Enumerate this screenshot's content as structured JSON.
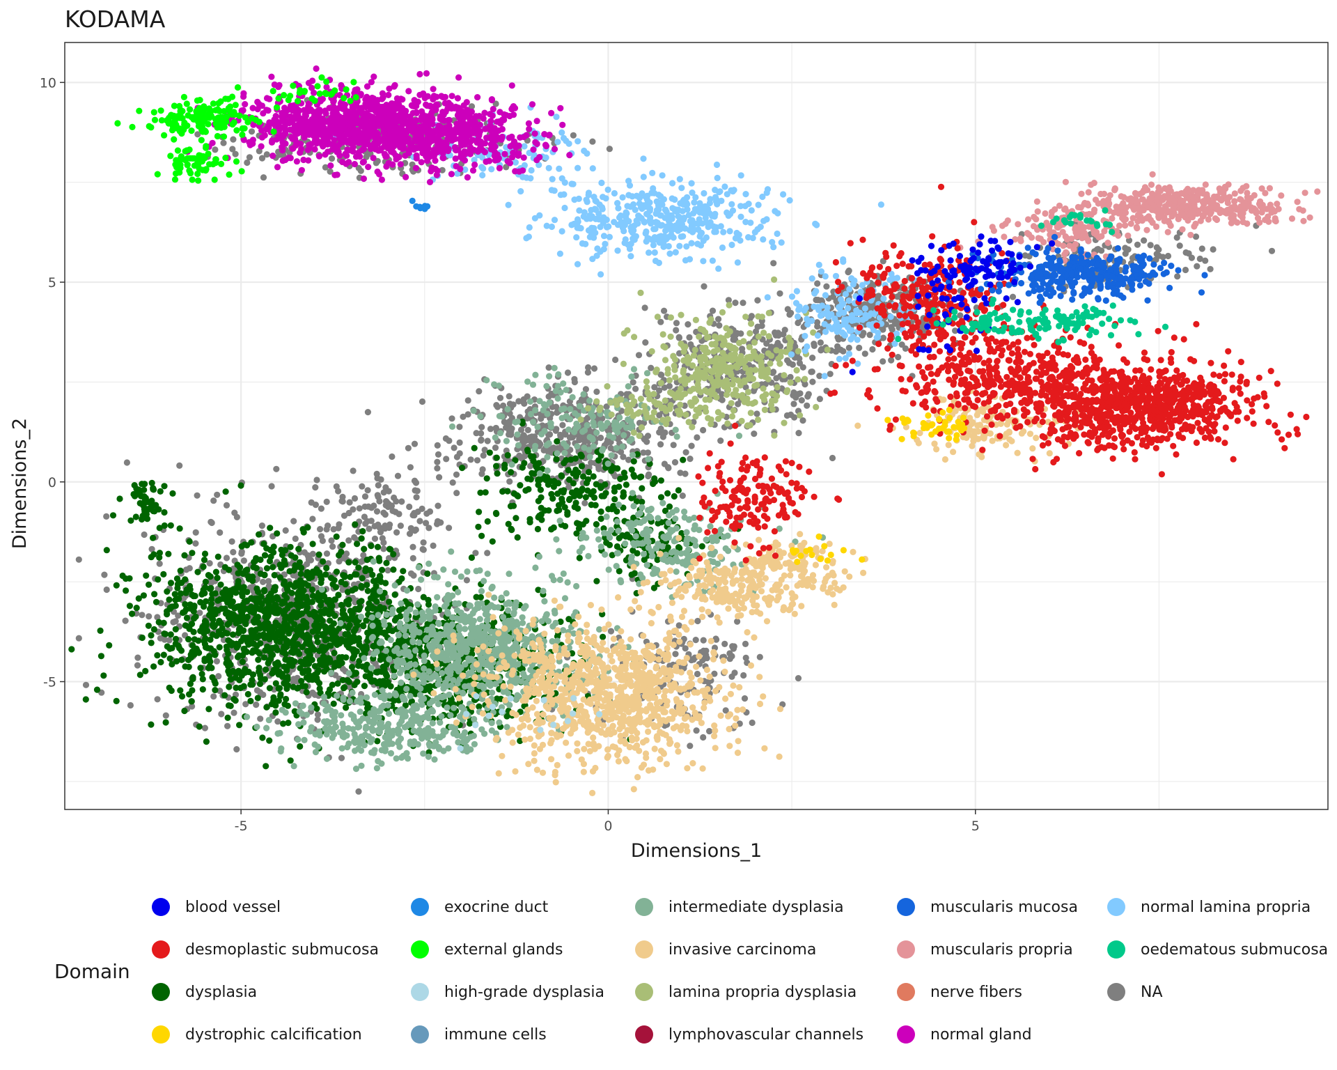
{
  "chart_data": {
    "type": "scatter",
    "title": "KODAMA",
    "xlabel": "Dimensions_1",
    "ylabel": "Dimensions_2",
    "xlim": [
      -7.4,
      9.8
    ],
    "ylim": [
      -8.2,
      11.0
    ],
    "x_ticks": [
      -5,
      0,
      5
    ],
    "y_ticks": [
      -5,
      0,
      5,
      10
    ],
    "x_tick_labels": [
      "-5",
      "0",
      "5"
    ],
    "y_tick_labels": [
      "-5",
      "0",
      "5",
      "10"
    ],
    "grid": true,
    "legend": {
      "title": "Domain",
      "placement": "bottom",
      "entries": [
        {
          "name": "blood vessel",
          "color": "#0000EE"
        },
        {
          "name": "desmoplastic submucosa",
          "color": "#E41A1C"
        },
        {
          "name": "dysplasia",
          "color": "#006400"
        },
        {
          "name": "dystrophic calcification",
          "color": "#FFD700"
        },
        {
          "name": "exocrine duct",
          "color": "#1E88E5"
        },
        {
          "name": "external glands",
          "color": "#00FF00"
        },
        {
          "name": "high-grade dysplasia",
          "color": "#ADD8E6"
        },
        {
          "name": "immune cells",
          "color": "#6699BB"
        },
        {
          "name": "intermediate dysplasia",
          "color": "#82B296"
        },
        {
          "name": "invasive carcinoma",
          "color": "#F0CB8C"
        },
        {
          "name": "lamina propria dysplasia",
          "color": "#A9BE76"
        },
        {
          "name": "lymphovascular channels",
          "color": "#A5123A"
        },
        {
          "name": "muscularis mucosa",
          "color": "#1565DD"
        },
        {
          "name": "muscularis propria",
          "color": "#E49399"
        },
        {
          "name": "nerve fibers",
          "color": "#E07A5F"
        },
        {
          "name": "normal gland",
          "color": "#CC00BB"
        },
        {
          "name": "normal lamina propria",
          "color": "#82CAFF"
        },
        {
          "name": "oedematous submucosa",
          "color": "#00C98A"
        },
        {
          "name": "NA",
          "color": "#7F7F7F"
        }
      ]
    },
    "series": [
      {
        "name": "NA",
        "color": "#7F7F7F",
        "clusters": [
          {
            "cx": -4.3,
            "cy": -3.4,
            "sx": 1.2,
            "sy": 1.5,
            "n": 700
          },
          {
            "cx": -0.5,
            "cy": 1.2,
            "sx": 1.0,
            "sy": 0.8,
            "n": 500
          },
          {
            "cx": 1.8,
            "cy": 3.0,
            "sx": 0.8,
            "sy": 0.9,
            "n": 300
          },
          {
            "cx": 3.6,
            "cy": 4.3,
            "sx": 0.7,
            "sy": 0.6,
            "n": 250
          },
          {
            "cx": -3.2,
            "cy": 8.6,
            "sx": 1.3,
            "sy": 0.5,
            "n": 250
          },
          {
            "cx": 6.8,
            "cy": 5.6,
            "sx": 0.8,
            "sy": 0.5,
            "n": 120
          },
          {
            "cx": -3.0,
            "cy": -0.6,
            "sx": 0.5,
            "sy": 0.7,
            "n": 100
          },
          {
            "cx": 1.0,
            "cy": -4.8,
            "sx": 0.8,
            "sy": 0.9,
            "n": 150
          }
        ]
      },
      {
        "name": "dysplasia",
        "color": "#006400",
        "clusters": [
          {
            "cx": -4.4,
            "cy": -3.6,
            "sx": 1.2,
            "sy": 1.3,
            "n": 1200
          },
          {
            "cx": -2.2,
            "cy": -4.6,
            "sx": 1.0,
            "sy": 1.0,
            "n": 600
          },
          {
            "cx": -0.5,
            "cy": -0.2,
            "sx": 0.8,
            "sy": 0.7,
            "n": 220
          },
          {
            "cx": 0.6,
            "cy": -1.6,
            "sx": 0.5,
            "sy": 0.6,
            "n": 100
          },
          {
            "cx": -6.3,
            "cy": -0.5,
            "sx": 0.15,
            "sy": 0.4,
            "n": 50
          }
        ]
      },
      {
        "name": "intermediate dysplasia",
        "color": "#82B296",
        "clusters": [
          {
            "cx": -1.8,
            "cy": -4.2,
            "sx": 0.9,
            "sy": 1.0,
            "n": 700
          },
          {
            "cx": -3.0,
            "cy": -6.2,
            "sx": 0.9,
            "sy": 0.5,
            "n": 300
          },
          {
            "cx": 0.8,
            "cy": -1.5,
            "sx": 0.7,
            "sy": 0.7,
            "n": 200
          },
          {
            "cx": -0.4,
            "cy": 1.5,
            "sx": 0.8,
            "sy": 0.7,
            "n": 150
          }
        ]
      },
      {
        "name": "invasive carcinoma",
        "color": "#F0CB8C",
        "clusters": [
          {
            "cx": 0.0,
            "cy": -5.3,
            "sx": 1.0,
            "sy": 1.1,
            "n": 900
          },
          {
            "cx": 1.8,
            "cy": -2.6,
            "sx": 0.8,
            "sy": 0.5,
            "n": 250
          },
          {
            "cx": 2.6,
            "cy": -1.9,
            "sx": 0.4,
            "sy": 0.3,
            "n": 80
          },
          {
            "cx": 5.2,
            "cy": 1.4,
            "sx": 0.7,
            "sy": 0.4,
            "n": 150
          }
        ]
      },
      {
        "name": "lamina propria dysplasia",
        "color": "#A9BE76",
        "clusters": [
          {
            "cx": 1.6,
            "cy": 2.8,
            "sx": 0.6,
            "sy": 0.8,
            "n": 300
          },
          {
            "cx": 0.6,
            "cy": 1.9,
            "sx": 0.6,
            "sy": 0.4,
            "n": 80
          }
        ]
      },
      {
        "name": "normal lamina propria",
        "color": "#82CAFF",
        "clusters": [
          {
            "cx": 0.8,
            "cy": 6.6,
            "sx": 1.0,
            "sy": 0.6,
            "n": 400
          },
          {
            "cx": 3.3,
            "cy": 4.3,
            "sx": 0.5,
            "sy": 0.7,
            "n": 150
          },
          {
            "cx": -1.5,
            "cy": 8.3,
            "sx": 0.8,
            "sy": 0.5,
            "n": 100
          }
        ]
      },
      {
        "name": "normal gland",
        "color": "#CC00BB",
        "clusters": [
          {
            "cx": -3.3,
            "cy": 8.9,
            "sx": 1.0,
            "sy": 0.55,
            "n": 1000
          },
          {
            "cx": -1.8,
            "cy": 8.6,
            "sx": 0.6,
            "sy": 0.5,
            "n": 200
          }
        ]
      },
      {
        "name": "external glands",
        "color": "#00FF00",
        "clusters": [
          {
            "cx": -5.5,
            "cy": 9.1,
            "sx": 0.4,
            "sy": 0.3,
            "n": 150
          },
          {
            "cx": -5.6,
            "cy": 8.0,
            "sx": 0.25,
            "sy": 0.25,
            "n": 60
          },
          {
            "cx": -4.0,
            "cy": 9.7,
            "sx": 0.5,
            "sy": 0.2,
            "n": 30
          }
        ]
      },
      {
        "name": "muscularis propria",
        "color": "#E49399",
        "clusters": [
          {
            "cx": 7.8,
            "cy": 6.9,
            "sx": 0.9,
            "sy": 0.3,
            "n": 400
          },
          {
            "cx": 6.2,
            "cy": 6.3,
            "sx": 0.6,
            "sy": 0.4,
            "n": 120
          }
        ]
      },
      {
        "name": "desmoplastic submucosa",
        "color": "#E41A1C",
        "clusters": [
          {
            "cx": 7.2,
            "cy": 1.9,
            "sx": 1.0,
            "sy": 0.65,
            "n": 800
          },
          {
            "cx": 5.3,
            "cy": 2.6,
            "sx": 1.0,
            "sy": 0.8,
            "n": 400
          },
          {
            "cx": 4.4,
            "cy": 4.6,
            "sx": 0.7,
            "sy": 0.8,
            "n": 250
          },
          {
            "cx": 2.0,
            "cy": -0.4,
            "sx": 0.5,
            "sy": 0.7,
            "n": 150
          }
        ]
      },
      {
        "name": "muscularis mucosa",
        "color": "#1565DD",
        "clusters": [
          {
            "cx": 6.4,
            "cy": 5.2,
            "sx": 0.8,
            "sy": 0.35,
            "n": 300
          }
        ]
      },
      {
        "name": "blood vessel",
        "color": "#0000EE",
        "clusters": [
          {
            "cx": 5.1,
            "cy": 5.3,
            "sx": 0.5,
            "sy": 0.5,
            "n": 100
          },
          {
            "cx": 4.5,
            "cy": 4.0,
            "sx": 0.6,
            "sy": 0.6,
            "n": 30
          }
        ]
      },
      {
        "name": "oedematous submucosa",
        "color": "#00C98A",
        "clusters": [
          {
            "cx": 5.8,
            "cy": 4.0,
            "sx": 0.9,
            "sy": 0.3,
            "n": 120
          },
          {
            "cx": 6.4,
            "cy": 6.5,
            "sx": 0.3,
            "sy": 0.2,
            "n": 20
          }
        ]
      },
      {
        "name": "dystrophic calcification",
        "color": "#FFD700",
        "clusters": [
          {
            "cx": 4.4,
            "cy": 1.4,
            "sx": 0.3,
            "sy": 0.25,
            "n": 40
          },
          {
            "cx": 2.8,
            "cy": -1.8,
            "sx": 0.3,
            "sy": 0.2,
            "n": 15
          }
        ]
      },
      {
        "name": "exocrine duct",
        "color": "#1E88E5",
        "clusters": [
          {
            "cx": -2.6,
            "cy": 6.9,
            "sx": 0.1,
            "sy": 0.05,
            "n": 8
          }
        ]
      },
      {
        "name": "high-grade dysplasia",
        "color": "#ADD8E6",
        "clusters": [
          {
            "cx": -1.6,
            "cy": -5.8,
            "sx": 0.8,
            "sy": 0.6,
            "n": 15
          }
        ]
      }
    ]
  }
}
